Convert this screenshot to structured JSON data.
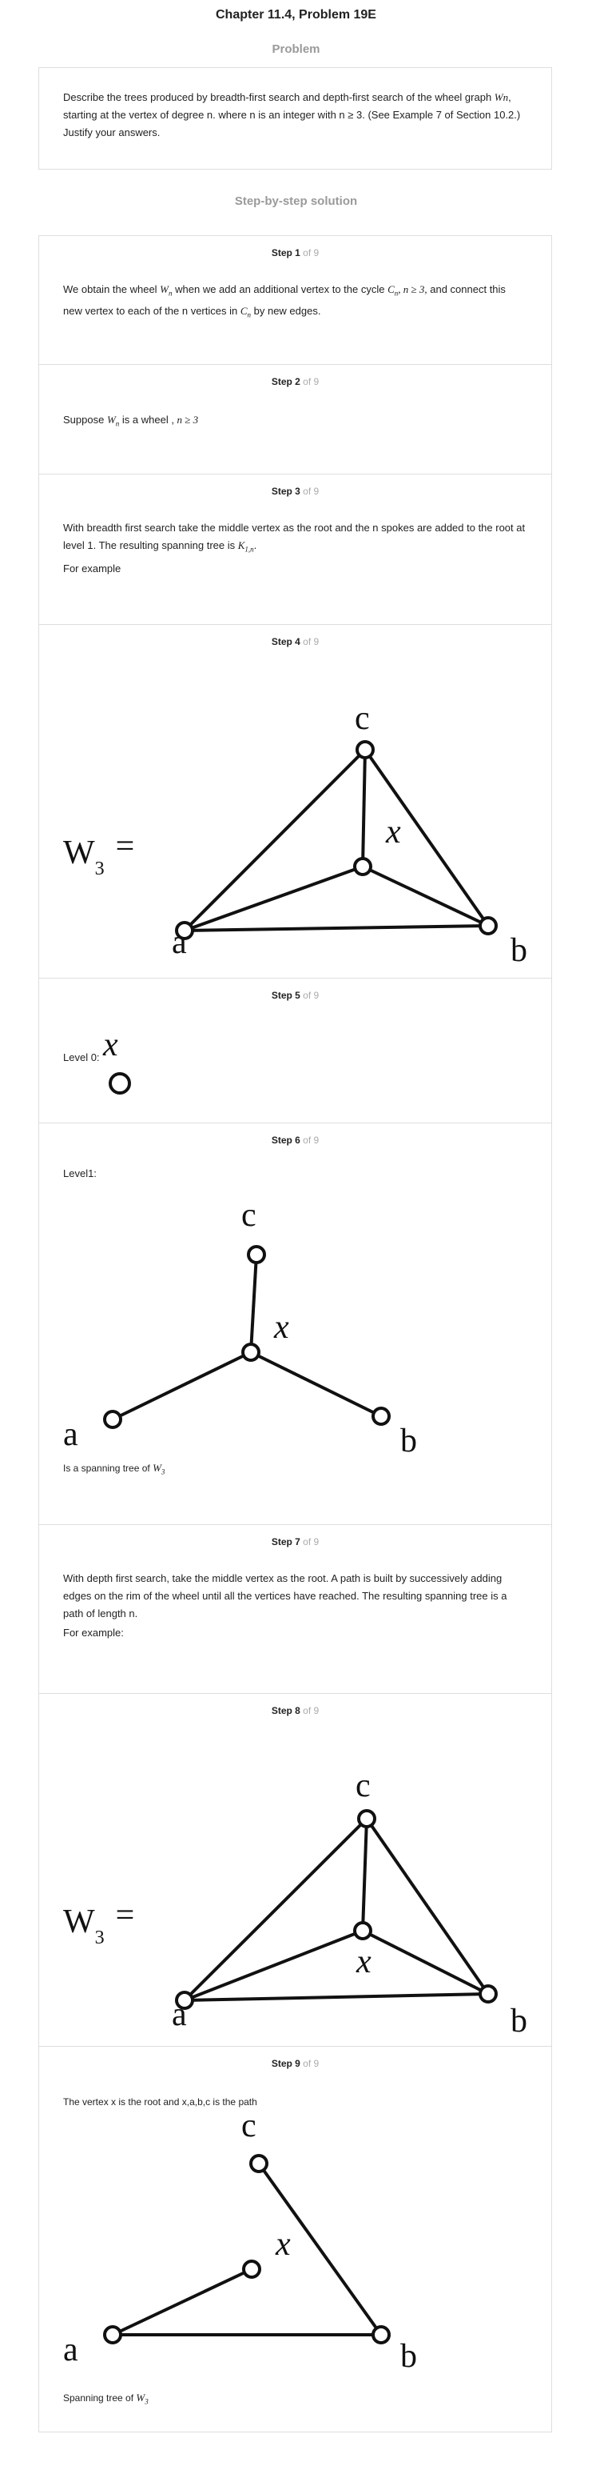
{
  "header": {
    "title": "Chapter 11.4, Problem 19E",
    "problem_label": "Problem",
    "problem_text_a": "Describe the trees produced by breadth-first search and depth-first search of the wheel graph ",
    "problem_text_var": "Wn",
    "problem_text_b": ", starting at the vertex of degree n. where n is an integer with n ≥ 3. (See Example 7 of Section 10.2.) Justify your answers.",
    "solution_label": "Step-by-step solution"
  },
  "steps": [
    {
      "step": "Step 1",
      "of": "of 9",
      "t1": "We obtain the wheel ",
      "m1": "W",
      "m1sub": "n",
      "t2": " when we add an additional vertex to the cycle ",
      "m2": "C",
      "m2sub": "n",
      "m2b": ", n ≥ 3,",
      "t3": " and connect this new vertex to each of the n vertices in ",
      "m3": "C",
      "m3sub": "n",
      "t4": " by new edges."
    },
    {
      "step": "Step 2",
      "of": "of 9",
      "t1": "Suppose ",
      "m1": "W",
      "m1sub": "n",
      "t2": " is a wheel ,  ",
      "m2": "n ≥ 3"
    },
    {
      "step": "Step 3",
      "of": "of 9",
      "t1": "With breadth first search take the middle vertex as the root and the n spokes are added to the root at level 1. The resulting spanning tree is ",
      "m1": "K",
      "m1sub": "1,n",
      "t2": ".",
      "t3": "For example"
    },
    {
      "step": "Step 4",
      "of": "of 9",
      "graph": {
        "lhs": "W",
        "lhs_sub": "3",
        "eq": "=",
        "labels": {
          "a": "a",
          "b": "b",
          "c": "c",
          "x": "x"
        }
      }
    },
    {
      "step": "Step 5",
      "of": "of 9",
      "t1": "Level 0:",
      "x": "x"
    },
    {
      "step": "Step 6",
      "of": "of 9",
      "t1": "Level1:",
      "labels": {
        "a": "a",
        "b": "b",
        "c": "c",
        "x": "x"
      },
      "t2": "Is a spanning tree of ",
      "m2": "W",
      "m2sub": "3"
    },
    {
      "step": "Step 7",
      "of": "of 9",
      "t1": "With depth first search, take the middle vertex as the root. A path is built by successively adding edges on the rim of the wheel until all the vertices have reached. The resulting spanning tree is a path of length n.",
      "t2": "For example:"
    },
    {
      "step": "Step 8",
      "of": "of 9",
      "graph": {
        "lhs": "W",
        "lhs_sub": "3",
        "eq": "=",
        "labels": {
          "a": "a",
          "b": "b",
          "c": "c",
          "x": "x"
        }
      }
    },
    {
      "step": "Step 9",
      "of": "of 9",
      "t1": "The vertex x is the root and x,a,b,c is the path",
      "labels": {
        "a": "a",
        "b": "b",
        "c": "c",
        "x": "x"
      },
      "t2": "Spanning tree of ",
      "m2": "W",
      "m2sub": "3"
    }
  ]
}
